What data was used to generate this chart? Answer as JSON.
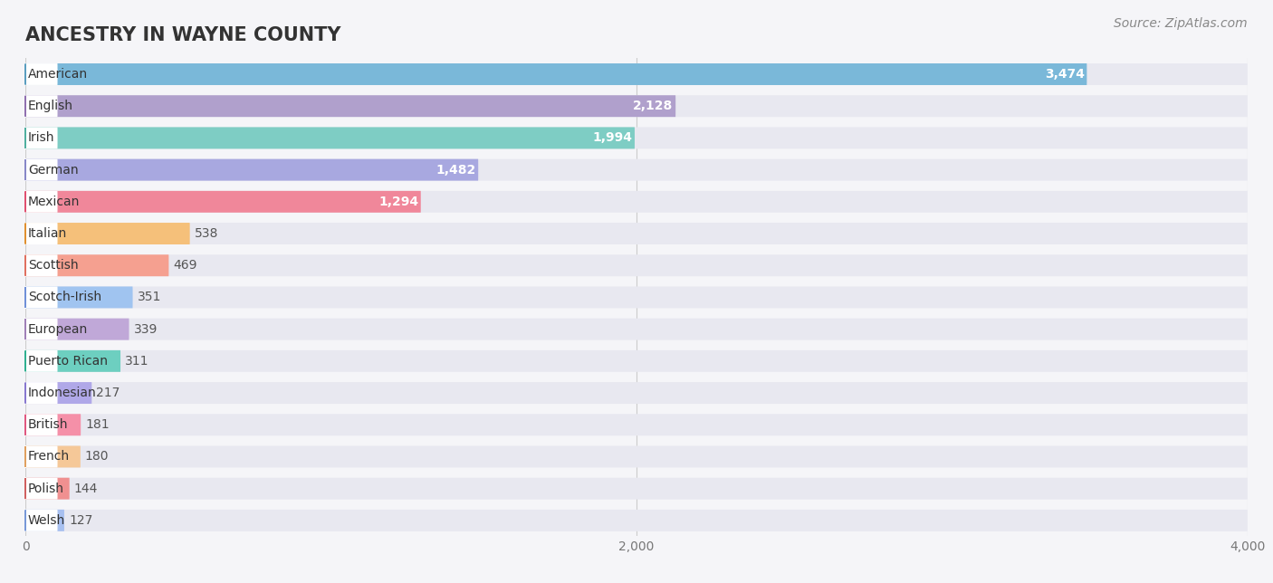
{
  "title": "ANCESTRY IN WAYNE COUNTY",
  "source": "Source: ZipAtlas.com",
  "categories": [
    "American",
    "English",
    "Irish",
    "German",
    "Mexican",
    "Italian",
    "Scottish",
    "Scotch-Irish",
    "European",
    "Puerto Rican",
    "Indonesian",
    "British",
    "French",
    "Polish",
    "Welsh"
  ],
  "values": [
    3474,
    2128,
    1994,
    1482,
    1294,
    538,
    469,
    351,
    339,
    311,
    217,
    181,
    180,
    144,
    127
  ],
  "bar_colors": [
    "#7ab8d9",
    "#b0a0cc",
    "#7ecdc4",
    "#a8a8e0",
    "#f0879a",
    "#f5c07a",
    "#f5a090",
    "#a0c4f0",
    "#c0a8d8",
    "#6dcfc0",
    "#b0a8e8",
    "#f590a8",
    "#f5c898",
    "#f09090",
    "#a8c0f0"
  ],
  "circle_colors": [
    "#5a9ec0",
    "#9070b0",
    "#50b0a0",
    "#8888c8",
    "#e05070",
    "#e09030",
    "#e07060",
    "#7090d8",
    "#a080b8",
    "#30b090",
    "#8878d0",
    "#e05880",
    "#e0a060",
    "#d06060",
    "#7898d8"
  ],
  "bg_color": "#f5f5f8",
  "bar_bg_color": "#e8e8f0",
  "xlim_max": 4000,
  "title_fontsize": 15,
  "label_fontsize": 10,
  "value_fontsize": 10,
  "source_fontsize": 10,
  "tick_labels": [
    "0",
    "2,000",
    "4,000"
  ],
  "tick_values": [
    0,
    2000,
    4000
  ]
}
